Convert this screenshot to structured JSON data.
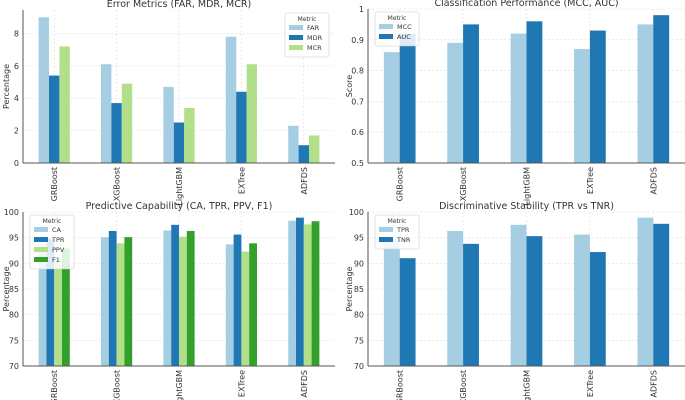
{
  "colors": {
    "c0": "#a6cee3",
    "c1": "#1f78b4",
    "c2": "#b2df8a",
    "c3": "#33a02c"
  },
  "chart_data": [
    {
      "type": "bar",
      "title": "Error Metrics (FAR, MDR, MCR)",
      "xlabel": "",
      "ylabel": "Percentage",
      "ylim": [
        0,
        9.45
      ],
      "yticks": [
        0,
        2,
        4,
        6,
        8
      ],
      "categories": [
        "GRBoost",
        "XGBoost",
        "LightGBM",
        "EXTree",
        "ADFDS"
      ],
      "legend": {
        "title": "Metric",
        "placement": "upper-right"
      },
      "grid": true,
      "series": [
        {
          "name": "FAR",
          "values": [
            9.0,
            6.1,
            4.7,
            7.8,
            2.3
          ]
        },
        {
          "name": "MDR",
          "values": [
            5.4,
            3.7,
            2.5,
            4.4,
            1.1
          ]
        },
        {
          "name": "MCR",
          "values": [
            7.2,
            4.9,
            3.4,
            6.1,
            1.7
          ]
        }
      ]
    },
    {
      "type": "bar",
      "title": "Classification Performance (MCC, AUC)",
      "xlabel": "",
      "ylabel": "Score",
      "ylim": [
        0.5,
        1.0
      ],
      "yticks": [
        0.5,
        0.6,
        0.7,
        0.8,
        0.9,
        1.0
      ],
      "categories": [
        "GRBoost",
        "XGBoost",
        "LightGBM",
        "EXTree",
        "ADFDS"
      ],
      "legend": {
        "title": "Metric",
        "placement": "upper-left"
      },
      "grid": true,
      "series": [
        {
          "name": "MCC",
          "values": [
            0.86,
            0.89,
            0.92,
            0.87,
            0.95
          ]
        },
        {
          "name": "AUC",
          "values": [
            0.92,
            0.95,
            0.96,
            0.93,
            0.98
          ]
        }
      ]
    },
    {
      "type": "bar",
      "title": "Predictive Capability (CA, TPR, PPV, F1)",
      "xlabel": "",
      "ylabel": "Percentage",
      "ylim": [
        70,
        100
      ],
      "yticks": [
        70,
        75,
        80,
        85,
        90,
        95,
        100
      ],
      "categories": [
        "GRBoost",
        "XGBoost",
        "LightGBM",
        "EXTree",
        "ADFDS"
      ],
      "legend": {
        "title": "Metric",
        "placement": "upper-left"
      },
      "grid": true,
      "series": [
        {
          "name": "CA",
          "values": [
            93.8,
            95.1,
            96.4,
            93.7,
            98.3
          ]
        },
        {
          "name": "TPR",
          "values": [
            94.8,
            96.3,
            97.5,
            95.6,
            98.9
          ]
        },
        {
          "name": "PPV",
          "values": [
            91.1,
            93.9,
            95.2,
            92.3,
            97.6
          ]
        },
        {
          "name": "F1",
          "values": [
            92.9,
            95.1,
            96.3,
            93.9,
            98.2
          ]
        }
      ]
    },
    {
      "type": "bar",
      "title": "Discriminative Stability (TPR vs TNR)",
      "xlabel": "",
      "ylabel": "Percentage",
      "ylim": [
        70,
        100
      ],
      "yticks": [
        70,
        75,
        80,
        85,
        90,
        95,
        100
      ],
      "categories": [
        "GRBoost",
        "XGBoost",
        "LightGBM",
        "EXTree",
        "ADFDS"
      ],
      "legend": {
        "title": "Metric",
        "placement": "upper-left"
      },
      "grid": true,
      "series": [
        {
          "name": "TPR",
          "values": [
            94.8,
            96.3,
            97.5,
            95.6,
            98.9
          ]
        },
        {
          "name": "TNR",
          "values": [
            91.0,
            93.8,
            95.3,
            92.2,
            97.7
          ]
        }
      ]
    }
  ]
}
